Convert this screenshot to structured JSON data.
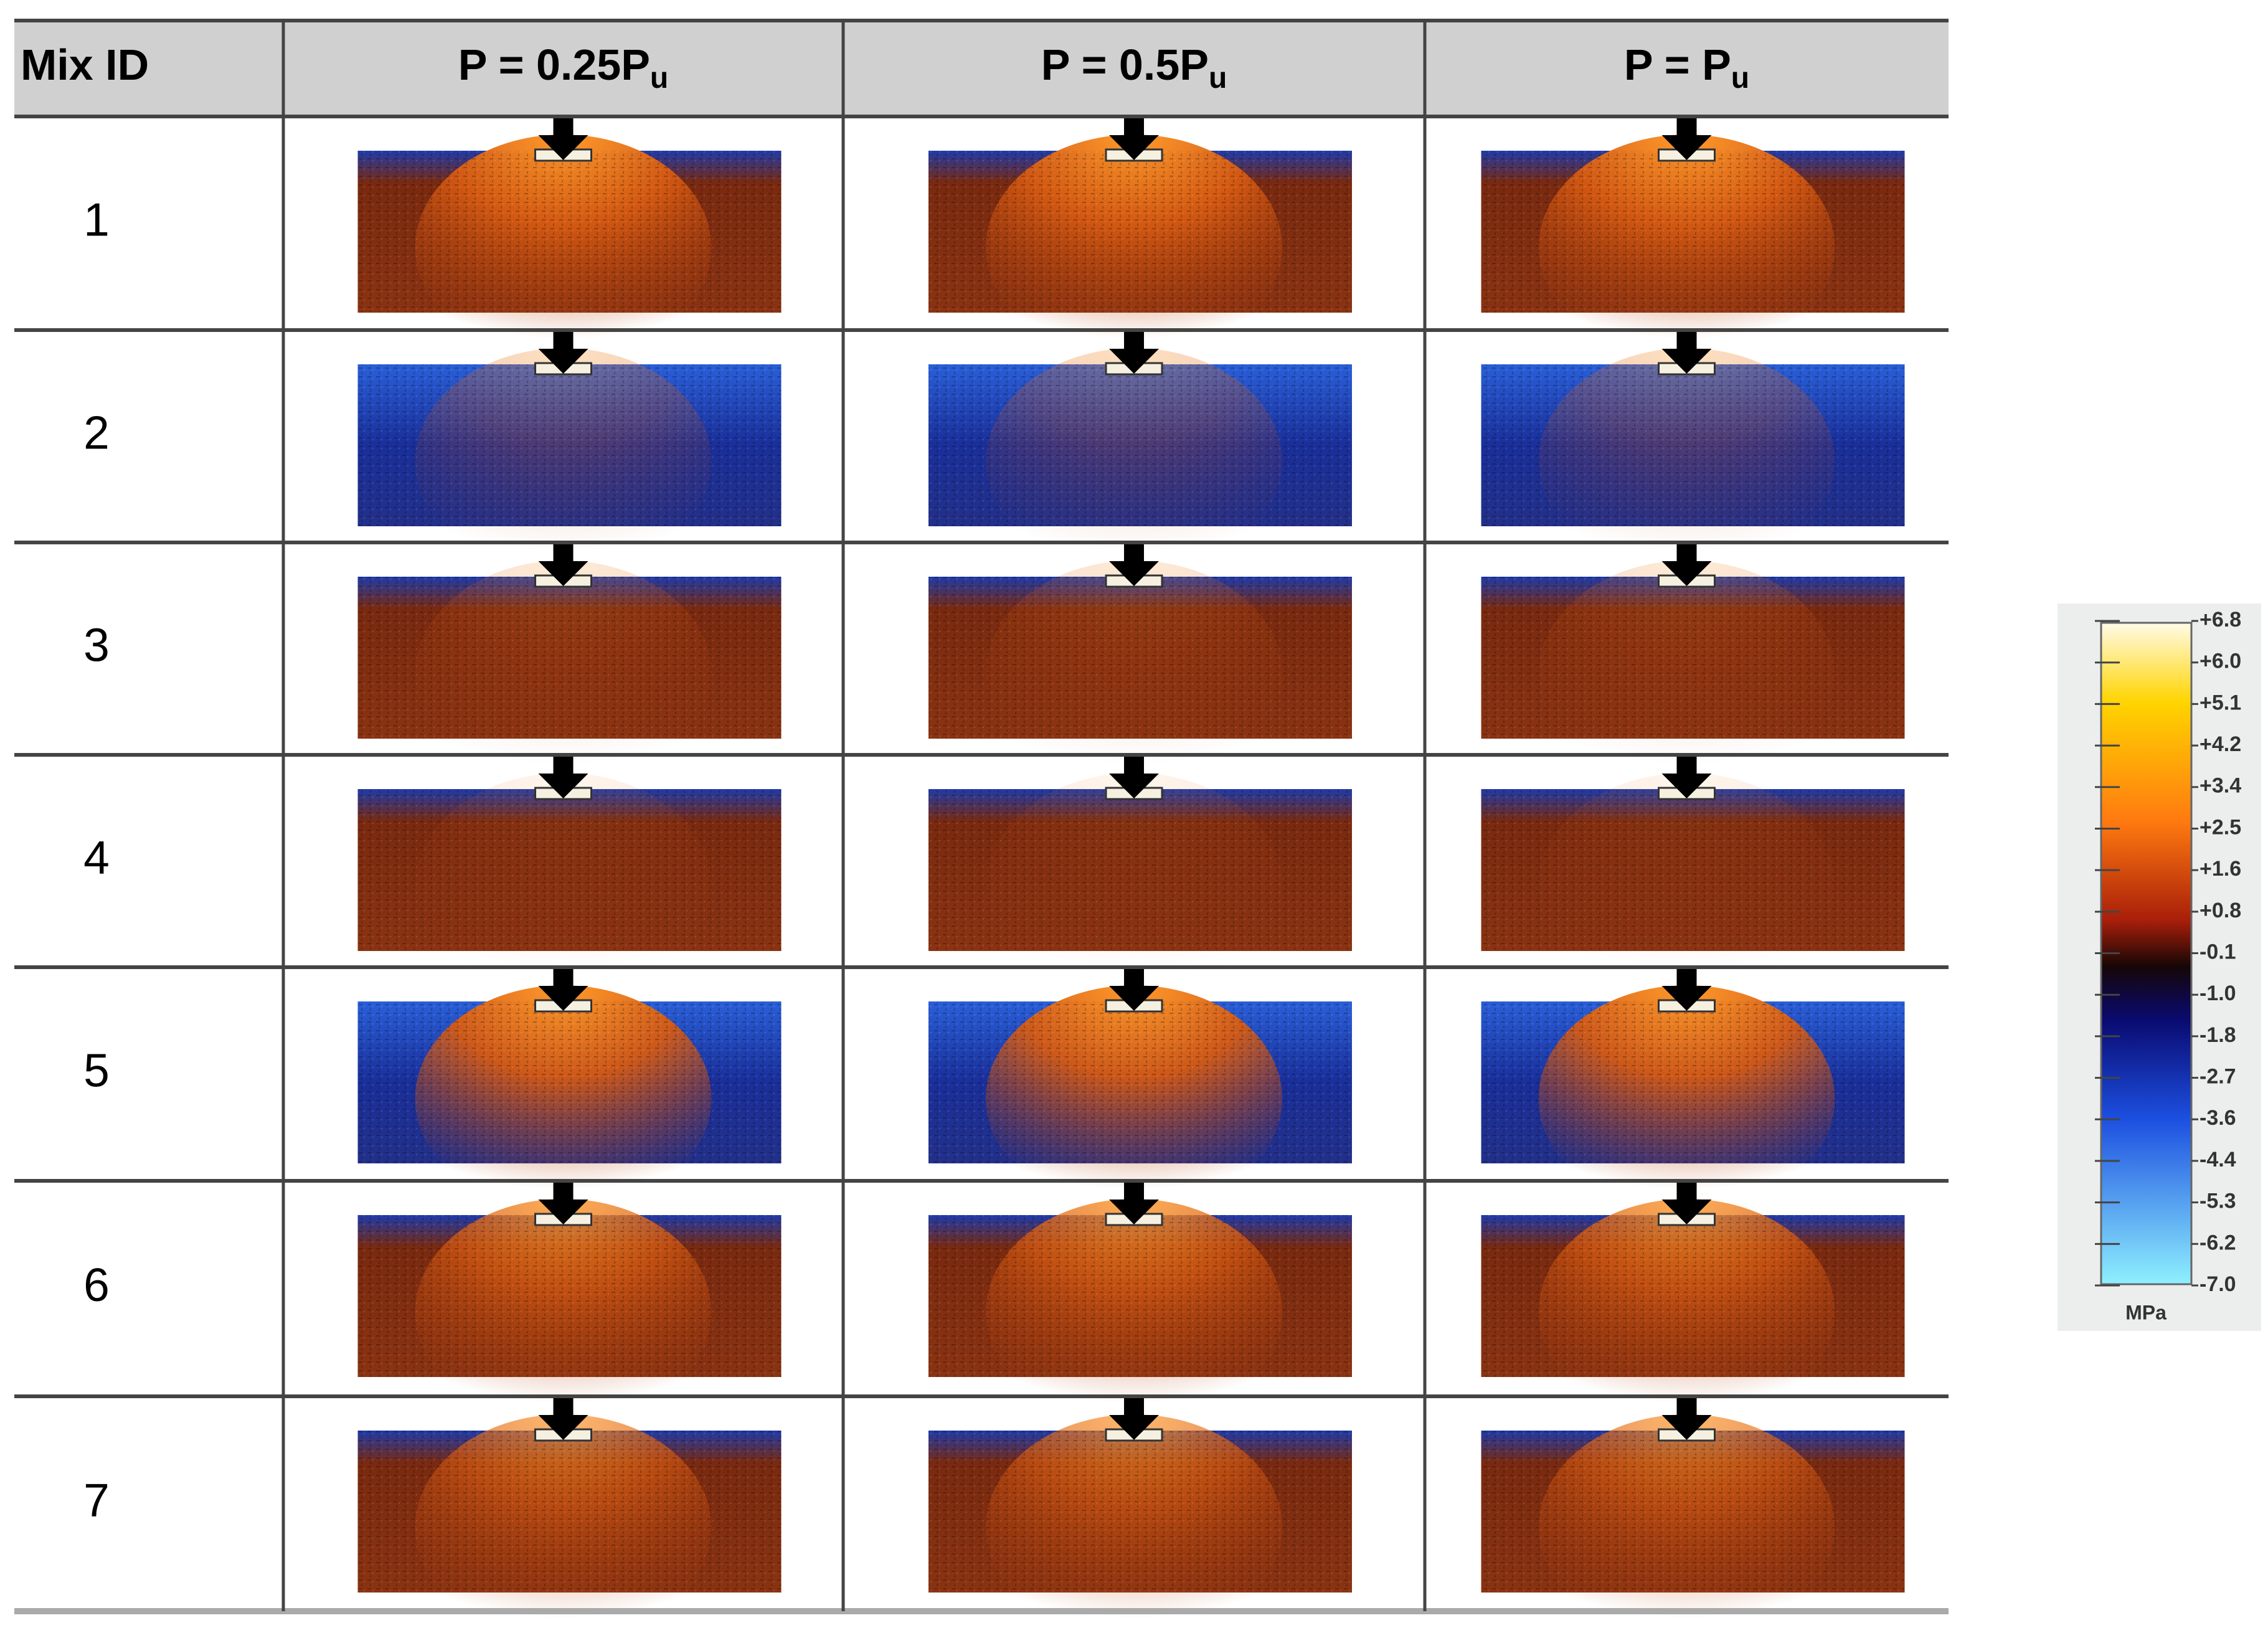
{
  "table": {
    "header": [
      {
        "text": "Mix ID"
      },
      {
        "text": "P = 0.25P",
        "sub": "u"
      },
      {
        "text": "P = 0.5P",
        "sub": "u"
      },
      {
        "text": "P = P",
        "sub": "u"
      }
    ],
    "rows": [
      "1",
      "2",
      "3",
      "4",
      "5",
      "6",
      "7"
    ]
  },
  "colorbar": {
    "labels": [
      "+6.8",
      "+6.0",
      "+5.1",
      "+4.2",
      "+3.4",
      "+2.5",
      "+1.6",
      "+0.8",
      "-0.1",
      "-1.0",
      "-1.8",
      "-2.7",
      "-3.6",
      "-4.4",
      "-5.3",
      "-6.2",
      "-7.0"
    ],
    "unit": "MPa"
  }
}
